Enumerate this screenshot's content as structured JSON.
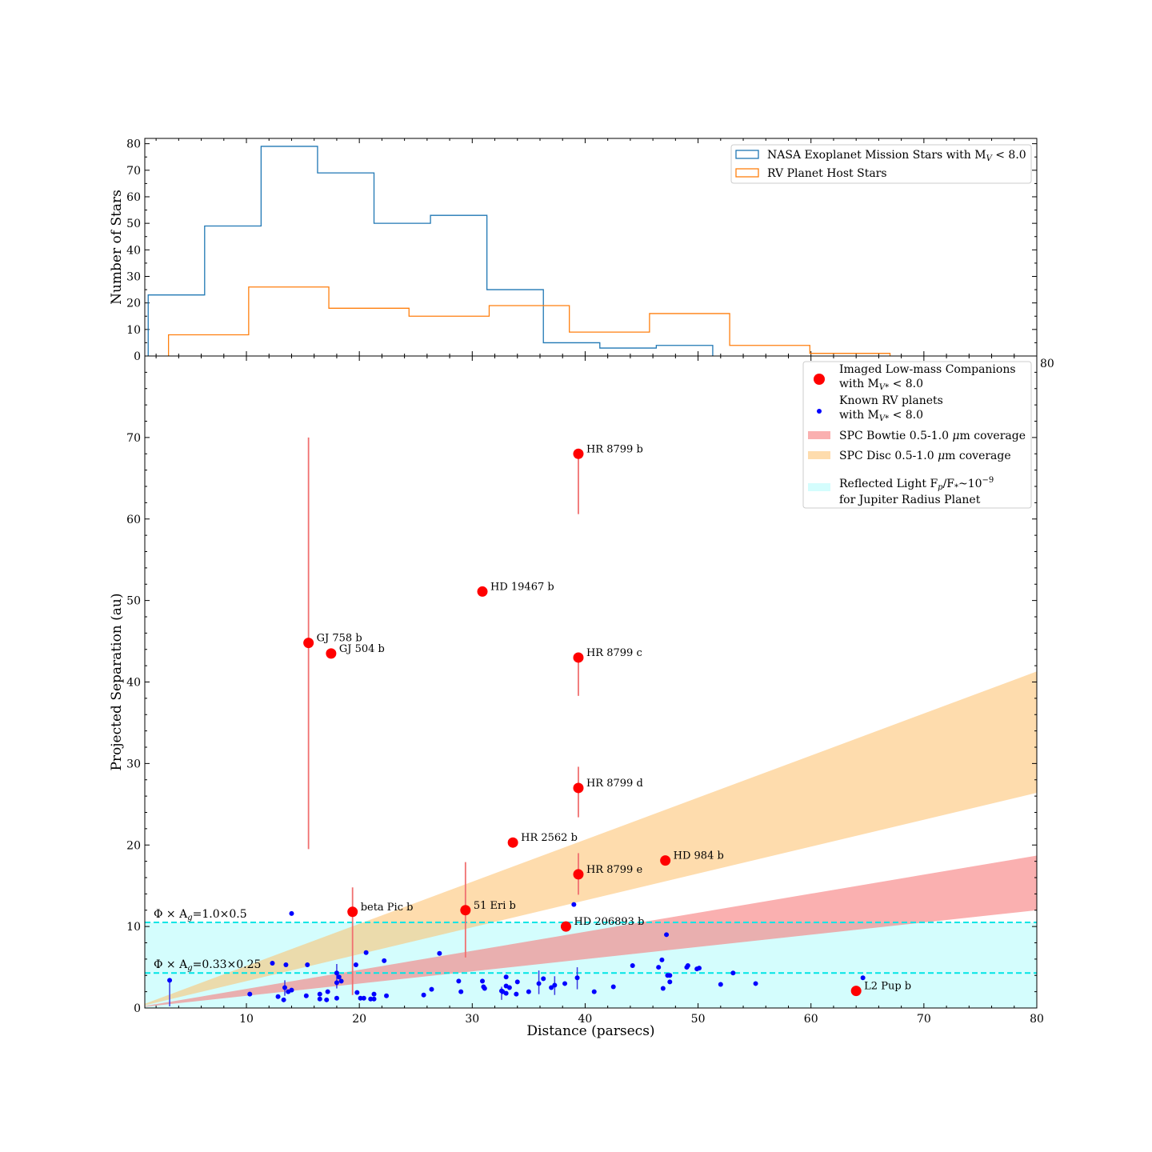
{
  "chart_data": [
    {
      "type": "step-histogram",
      "ylabel": "Number of Stars",
      "xlim": [
        1,
        80
      ],
      "ylim": [
        0,
        82
      ],
      "yticks": [
        0,
        10,
        20,
        30,
        40,
        50,
        60,
        70,
        80
      ],
      "series": [
        {
          "name": "NASA Exoplanet Mission Stars with M_V < 8.0",
          "legend_main": "NASA Exoplanet Mission Stars with M",
          "legend_sub": "V",
          "legend_tail": " < 8.0",
          "color": "#1f77b4",
          "edges": [
            1.3,
            6.3,
            11.3,
            16.3,
            21.3,
            26.3,
            31.3,
            36.3,
            41.3,
            46.3,
            51.3
          ],
          "counts": [
            23,
            49,
            79,
            69,
            50,
            53,
            25,
            5,
            3,
            4
          ]
        },
        {
          "name": "RV Planet Host Stars",
          "legend_main": "RV Planet Host Stars",
          "color": "#ff7f0e",
          "edges": [
            3.1,
            10.2,
            17.3,
            24.4,
            31.5,
            38.6,
            45.7,
            52.8,
            59.9,
            67.0
          ],
          "counts": [
            8,
            26,
            18,
            15,
            19,
            9,
            16,
            4,
            1
          ]
        }
      ]
    },
    {
      "type": "scatter",
      "xlabel": "Distance (parsecs)",
      "ylabel": "Projected Separation (au)",
      "xlim": [
        1,
        80
      ],
      "ylim": [
        0,
        80
      ],
      "xticks": [
        10,
        20,
        30,
        40,
        50,
        60,
        70,
        80
      ],
      "yticks": [
        0,
        10,
        20,
        30,
        40,
        50,
        60,
        70
      ],
      "bands": [
        {
          "name": "SPC Bowtie 0.5-1.0 μm coverage",
          "color": "#f77b7b",
          "opacity": 0.6,
          "lower": [
            [
              1,
              0.15
            ],
            [
              80,
              12.0
            ]
          ],
          "upper": [
            [
              1,
              0.24
            ],
            [
              80,
              18.7
            ]
          ]
        },
        {
          "name": "SPC Disc 0.5-1.0 μm coverage",
          "color": "#fdc06a",
          "opacity": 0.55,
          "lower": [
            [
              1,
              0.33
            ],
            [
              80,
              26.4
            ]
          ],
          "upper": [
            [
              1,
              0.52
            ],
            [
              80,
              41.3
            ]
          ]
        },
        {
          "name": "Reflected Light Fp/F*~10^-9 for Jupiter Radius Planet",
          "color": "#ccfdfd",
          "opacity": 0.85,
          "lower": [
            [
              1,
              0
            ],
            [
              80,
              0
            ]
          ],
          "upper": [
            [
              1,
              10.5
            ],
            [
              80,
              10.5
            ]
          ]
        }
      ],
      "reference_lines": [
        {
          "y": 10.5,
          "label_main": "Φ × A",
          "label_sub": "g",
          "label_tail": "=1.0×0.5",
          "color": "#00e5e5"
        },
        {
          "y": 4.3,
          "label_main": "Φ × A",
          "label_sub": "g",
          "label_tail": "=0.33×0.25",
          "color": "#00e5e5"
        }
      ],
      "imaged_companions": [
        {
          "name": "GJ 758 b",
          "x": 15.5,
          "y": 44.8,
          "err": [
            19.5,
            70.0
          ]
        },
        {
          "name": "GJ 504 b",
          "x": 17.5,
          "y": 43.5,
          "err": null
        },
        {
          "name": "HD 19467 b",
          "x": 30.9,
          "y": 51.1,
          "err": null
        },
        {
          "name": "HR 8799 b",
          "x": 39.4,
          "y": 68.0,
          "err": [
            60.6,
            68.0
          ]
        },
        {
          "name": "HR 8799 c",
          "x": 39.4,
          "y": 43.0,
          "err": [
            38.3,
            43.0
          ]
        },
        {
          "name": "HR 8799 d",
          "x": 39.4,
          "y": 27.0,
          "err": [
            23.4,
            29.6
          ]
        },
        {
          "name": "HR 8799 e",
          "x": 39.4,
          "y": 16.4,
          "err": [
            13.9,
            19.0
          ]
        },
        {
          "name": "HR 2562 b",
          "x": 33.6,
          "y": 20.3,
          "err": null
        },
        {
          "name": "HD 984 b",
          "x": 47.1,
          "y": 18.1,
          "err": null
        },
        {
          "name": "beta Pic b",
          "x": 19.4,
          "y": 11.8,
          "err": [
            1.6,
            14.8
          ]
        },
        {
          "name": "51 Eri b",
          "x": 29.4,
          "y": 12.0,
          "err": [
            6.2,
            17.9
          ]
        },
        {
          "name": "HD 206893 b",
          "x": 38.3,
          "y": 10.0,
          "err": null
        },
        {
          "name": "L2 Pup b",
          "x": 64.0,
          "y": 2.1,
          "err": null
        }
      ],
      "rv_planets": [
        {
          "x": 3.2,
          "y": 3.4,
          "err": [
            0.2,
            3.4
          ]
        },
        {
          "x": 10.3,
          "y": 1.7
        },
        {
          "x": 12.3,
          "y": 5.5
        },
        {
          "x": 12.8,
          "y": 1.4
        },
        {
          "x": 13.3,
          "y": 1.0
        },
        {
          "x": 13.4,
          "y": 2.5,
          "err": [
            1.5,
            3.4
          ]
        },
        {
          "x": 13.5,
          "y": 5.3
        },
        {
          "x": 13.7,
          "y": 2.0
        },
        {
          "x": 14.0,
          "y": 2.2
        },
        {
          "x": 14.0,
          "y": 11.6
        },
        {
          "x": 15.3,
          "y": 1.5
        },
        {
          "x": 15.4,
          "y": 5.3
        },
        {
          "x": 16.5,
          "y": 1.1
        },
        {
          "x": 16.5,
          "y": 1.7
        },
        {
          "x": 17.1,
          "y": 1.0
        },
        {
          "x": 17.2,
          "y": 2.0
        },
        {
          "x": 18.0,
          "y": 1.2
        },
        {
          "x": 18.0,
          "y": 3.1
        },
        {
          "x": 18.0,
          "y": 4.3,
          "err": [
            2.4,
            5.4
          ]
        },
        {
          "x": 18.2,
          "y": 3.8
        },
        {
          "x": 18.4,
          "y": 3.3
        },
        {
          "x": 19.7,
          "y": 5.3
        },
        {
          "x": 19.8,
          "y": 1.9
        },
        {
          "x": 20.1,
          "y": 1.2
        },
        {
          "x": 20.4,
          "y": 1.2
        },
        {
          "x": 20.6,
          "y": 6.8
        },
        {
          "x": 21.0,
          "y": 1.1
        },
        {
          "x": 21.3,
          "y": 1.1
        },
        {
          "x": 21.3,
          "y": 1.7
        },
        {
          "x": 22.2,
          "y": 5.8
        },
        {
          "x": 22.4,
          "y": 1.5
        },
        {
          "x": 25.7,
          "y": 1.6
        },
        {
          "x": 26.4,
          "y": 2.3
        },
        {
          "x": 27.1,
          "y": 6.7
        },
        {
          "x": 28.8,
          "y": 3.3
        },
        {
          "x": 29.0,
          "y": 2.0
        },
        {
          "x": 30.9,
          "y": 3.3
        },
        {
          "x": 31.0,
          "y": 2.6
        },
        {
          "x": 31.1,
          "y": 2.4
        },
        {
          "x": 32.6,
          "y": 2.1,
          "err": [
            1.0,
            2.6
          ]
        },
        {
          "x": 32.7,
          "y": 2.0
        },
        {
          "x": 33.0,
          "y": 1.8
        },
        {
          "x": 33.0,
          "y": 2.7
        },
        {
          "x": 33.0,
          "y": 3.8
        },
        {
          "x": 33.3,
          "y": 2.5
        },
        {
          "x": 33.9,
          "y": 1.7
        },
        {
          "x": 34.0,
          "y": 3.2
        },
        {
          "x": 35.0,
          "y": 2.0
        },
        {
          "x": 35.9,
          "y": 3.0,
          "err": [
            1.7,
            4.6
          ]
        },
        {
          "x": 36.3,
          "y": 3.6
        },
        {
          "x": 37.0,
          "y": 2.5
        },
        {
          "x": 37.3,
          "y": 2.8,
          "err": [
            1.6,
            3.9
          ]
        },
        {
          "x": 38.2,
          "y": 3.0
        },
        {
          "x": 39.0,
          "y": 12.7
        },
        {
          "x": 39.3,
          "y": 3.7,
          "err": [
            2.3,
            5.0
          ]
        },
        {
          "x": 40.8,
          "y": 2.0
        },
        {
          "x": 42.5,
          "y": 2.6
        },
        {
          "x": 44.2,
          "y": 5.2
        },
        {
          "x": 46.5,
          "y": 5.0
        },
        {
          "x": 46.8,
          "y": 5.9
        },
        {
          "x": 46.9,
          "y": 2.4
        },
        {
          "x": 47.2,
          "y": 9.0
        },
        {
          "x": 47.3,
          "y": 4.0
        },
        {
          "x": 47.5,
          "y": 4.0
        },
        {
          "x": 47.5,
          "y": 3.2
        },
        {
          "x": 49.0,
          "y": 5.0
        },
        {
          "x": 49.1,
          "y": 5.2
        },
        {
          "x": 49.9,
          "y": 4.8
        },
        {
          "x": 50.1,
          "y": 4.9
        },
        {
          "x": 52.0,
          "y": 2.9
        },
        {
          "x": 53.1,
          "y": 4.3
        },
        {
          "x": 55.1,
          "y": 3.0
        },
        {
          "x": 64.6,
          "y": 3.7
        }
      ],
      "legend": [
        {
          "key": "imaged",
          "line1": "Imaged Low-mass Companions",
          "line2_main": "with M",
          "line2_sub": "V*",
          "line2_tail": " < 8.0"
        },
        {
          "key": "rv",
          "line1": "Known RV planets",
          "line2_main": "with M",
          "line2_sub": "V*",
          "line2_tail": " < 8.0"
        },
        {
          "key": "bowtie",
          "line1_main": "SPC Bowtie 0.5-1.0 ",
          "line1_italic": "μ",
          "line1_tail": "m coverage"
        },
        {
          "key": "disc",
          "line1_main": "SPC Disc 0.5-1.0 ",
          "line1_italic": "μ",
          "line1_tail": "m coverage"
        },
        {
          "key": "reflected",
          "line1_main": "Reflected Light F",
          "line1_sub": "p",
          "line1_mid": "/F",
          "line1_sub2": "*",
          "line1_tail": "~10",
          "line1_sup": "−9",
          "line2": " for Jupiter Radius Planet"
        }
      ],
      "colors": {
        "imaged": "#ff0000",
        "imaged_err": "#f07070",
        "rv": "#0000ff",
        "rv_err": "#3a3ae0"
      }
    }
  ]
}
